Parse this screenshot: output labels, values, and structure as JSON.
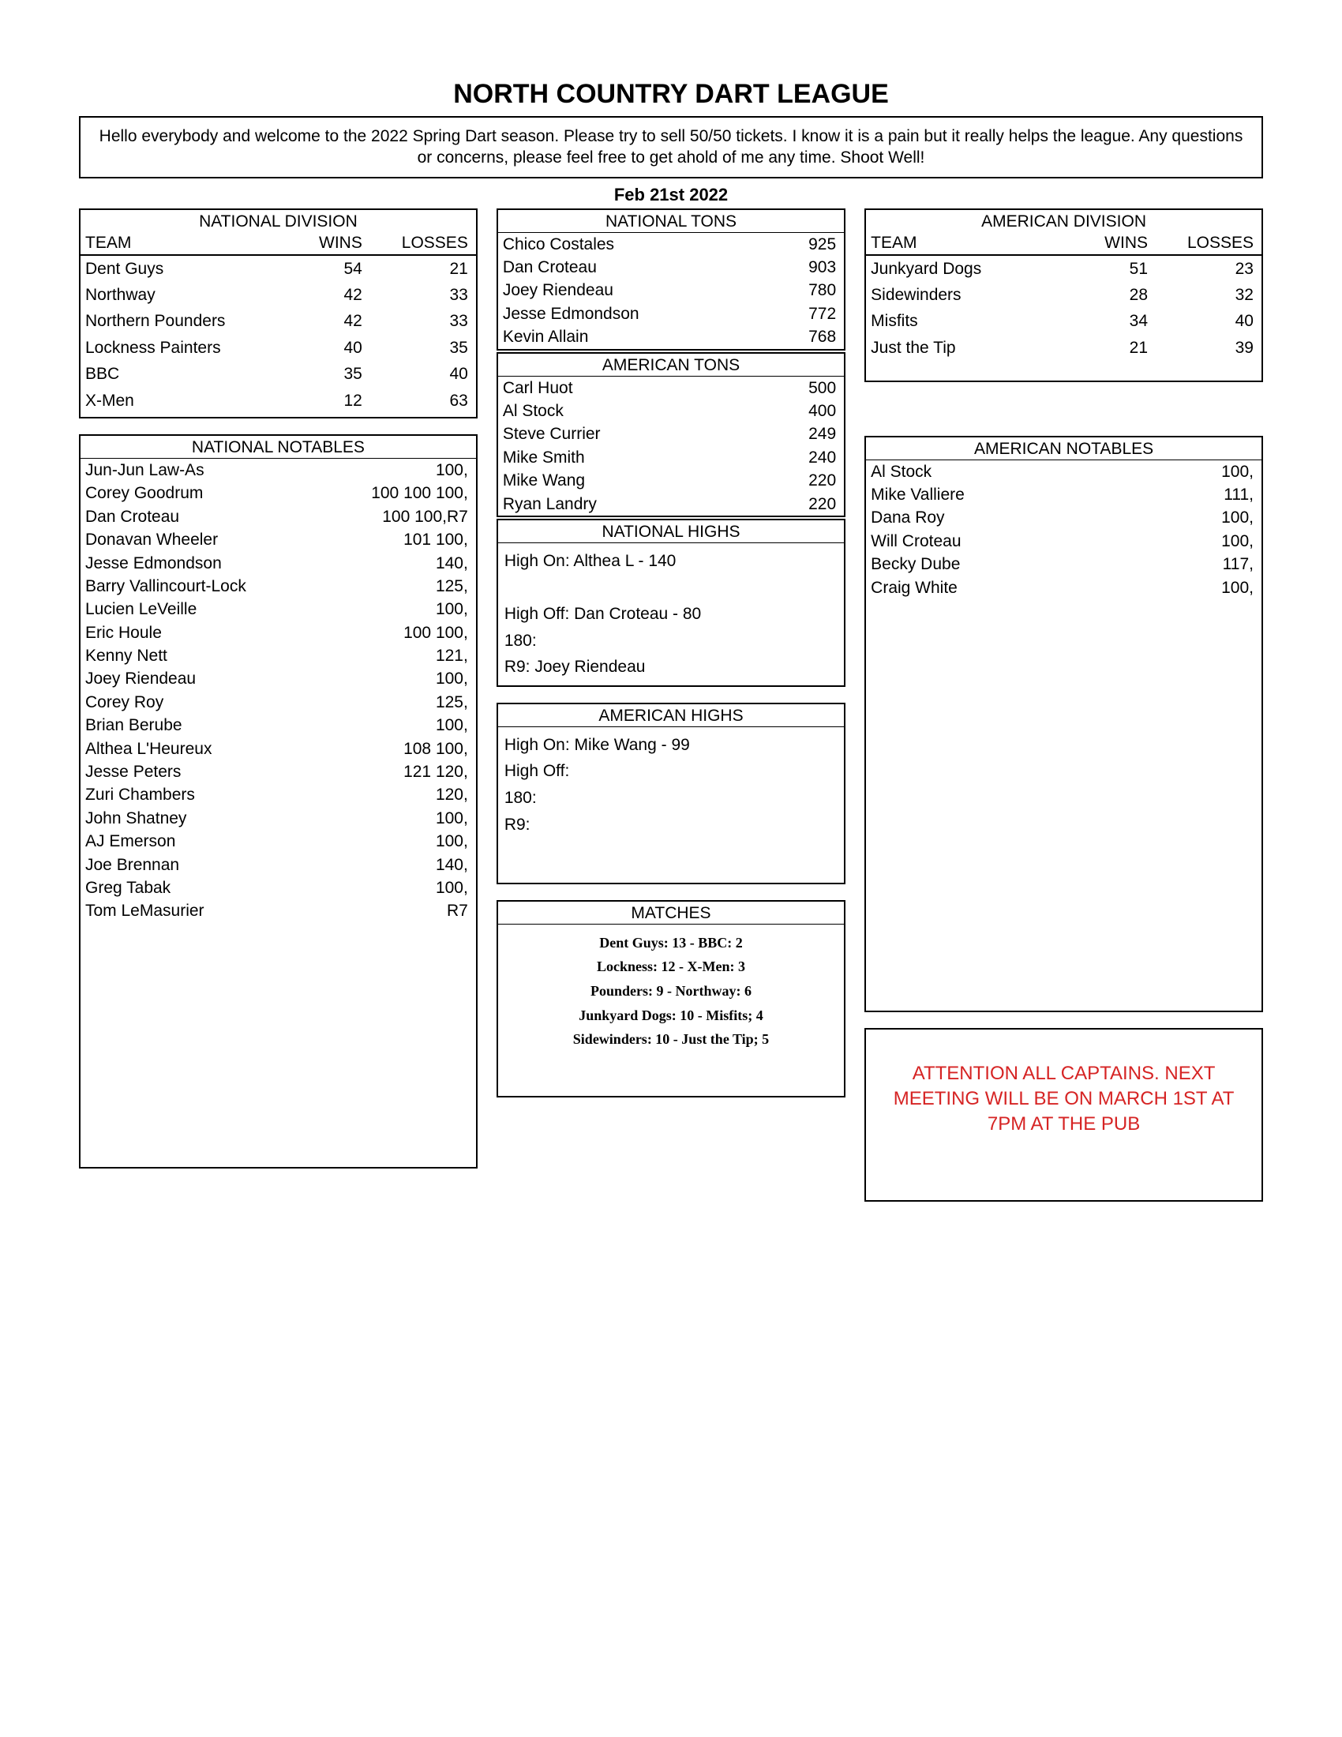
{
  "title": "NORTH COUNTRY DART LEAGUE",
  "intro": "Hello everybody and welcome to the 2022 Spring Dart season.  Please try to sell 50/50 tickets.  I know it is a pain but it really helps the league.  Any questions or concerns, please feel free to get ahold of me any time.  Shoot Well!",
  "date": "Feb 21st 2022",
  "headers": {
    "team": "TEAM",
    "wins": "WINS",
    "losses": "LOSSES"
  },
  "national_division": {
    "title": "NATIONAL DIVISION",
    "rows": [
      {
        "team": "Dent Guys",
        "wins": 54,
        "losses": 21
      },
      {
        "team": "Northway",
        "wins": 42,
        "losses": 33
      },
      {
        "team": "Northern Pounders",
        "wins": 42,
        "losses": 33
      },
      {
        "team": "Lockness Painters",
        "wins": 40,
        "losses": 35
      },
      {
        "team": "BBC",
        "wins": 35,
        "losses": 40
      },
      {
        "team": "X-Men",
        "wins": 12,
        "losses": 63
      }
    ]
  },
  "national_notables": {
    "title": "NATIONAL NOTABLES",
    "rows": [
      {
        "name": "Jun-Jun Law-As",
        "val": "100,"
      },
      {
        "name": "Corey Goodrum",
        "val": "100 100 100,"
      },
      {
        "name": "Dan Croteau",
        "val": "100 100,R7"
      },
      {
        "name": "Donavan Wheeler",
        "val": "101 100,"
      },
      {
        "name": "Jesse Edmondson",
        "val": "140,"
      },
      {
        "name": "Barry Vallincourt-Lock",
        "val": "125,"
      },
      {
        "name": "Lucien LeVeille",
        "val": "100,"
      },
      {
        "name": "Eric Houle",
        "val": "100 100,"
      },
      {
        "name": "Kenny Nett",
        "val": "121,"
      },
      {
        "name": "Joey Riendeau",
        "val": "100,"
      },
      {
        "name": "Corey Roy",
        "val": "125,"
      },
      {
        "name": "Brian Berube",
        "val": "100,"
      },
      {
        "name": "Althea L'Heureux",
        "val": "108 100,"
      },
      {
        "name": "Jesse Peters",
        "val": "121 120,"
      },
      {
        "name": "Zuri Chambers",
        "val": "120,"
      },
      {
        "name": "John Shatney",
        "val": "100,"
      },
      {
        "name": "AJ Emerson",
        "val": "100,"
      },
      {
        "name": "Joe Brennan",
        "val": "140,"
      },
      {
        "name": "Greg Tabak",
        "val": "100,"
      },
      {
        "name": "Tom LeMasurier",
        "val": "R7"
      }
    ]
  },
  "national_tons": {
    "title": "NATIONAL TONS",
    "rows": [
      {
        "name": "Chico Costales",
        "val": 925
      },
      {
        "name": "Dan Croteau",
        "val": 903
      },
      {
        "name": "Joey Riendeau",
        "val": 780
      },
      {
        "name": "Jesse Edmondson",
        "val": 772
      },
      {
        "name": "Kevin Allain",
        "val": 768
      }
    ]
  },
  "american_tons": {
    "title": "AMERICAN TONS",
    "rows": [
      {
        "name": "Carl Huot",
        "val": 500
      },
      {
        "name": "Al Stock",
        "val": 400
      },
      {
        "name": "Steve Currier",
        "val": 249
      },
      {
        "name": "Mike Smith",
        "val": 240
      },
      {
        "name": "Mike Wang",
        "val": 220
      },
      {
        "name": "Ryan Landry",
        "val": 220
      }
    ]
  },
  "national_highs": {
    "title": "NATIONAL HIGHS",
    "lines": [
      "High On: Althea L - 140",
      "",
      "High Off: Dan Croteau - 80",
      "180:",
      "R9: Joey Riendeau"
    ]
  },
  "american_highs": {
    "title": "AMERICAN HIGHS",
    "lines": [
      "High On: Mike Wang - 99",
      "High Off:",
      "180:",
      "R9:"
    ]
  },
  "matches": {
    "title": "MATCHES",
    "lines": [
      "Dent Guys: 13 - BBC: 2",
      "Lockness: 12 - X-Men: 3",
      "Pounders: 9 - Northway: 6",
      "Junkyard Dogs: 10 - Misfits; 4",
      "Sidewinders: 10 - Just the Tip; 5"
    ]
  },
  "american_division": {
    "title": "AMERICAN DIVISION",
    "rows": [
      {
        "team": "Junkyard  Dogs",
        "wins": 51,
        "losses": 23
      },
      {
        "team": "Sidewinders",
        "wins": 28,
        "losses": 32
      },
      {
        "team": "Misfits",
        "wins": 34,
        "losses": 40
      },
      {
        "team": "Just the Tip",
        "wins": 21,
        "losses": 39
      }
    ]
  },
  "american_notables": {
    "title": "AMERICAN NOTABLES",
    "rows": [
      {
        "name": "Al Stock",
        "val": "100,"
      },
      {
        "name": "Mike Valliere",
        "val": "111,"
      },
      {
        "name": "Dana Roy",
        "val": "100,"
      },
      {
        "name": "Will Croteau",
        "val": "100,"
      },
      {
        "name": "Becky Dube",
        "val": "117,"
      },
      {
        "name": "Craig White",
        "val": "100,"
      }
    ]
  },
  "attention": "ATTENTION ALL CAPTAINS. NEXT MEETING WILL BE ON MARCH 1ST AT 7PM AT THE PUB"
}
